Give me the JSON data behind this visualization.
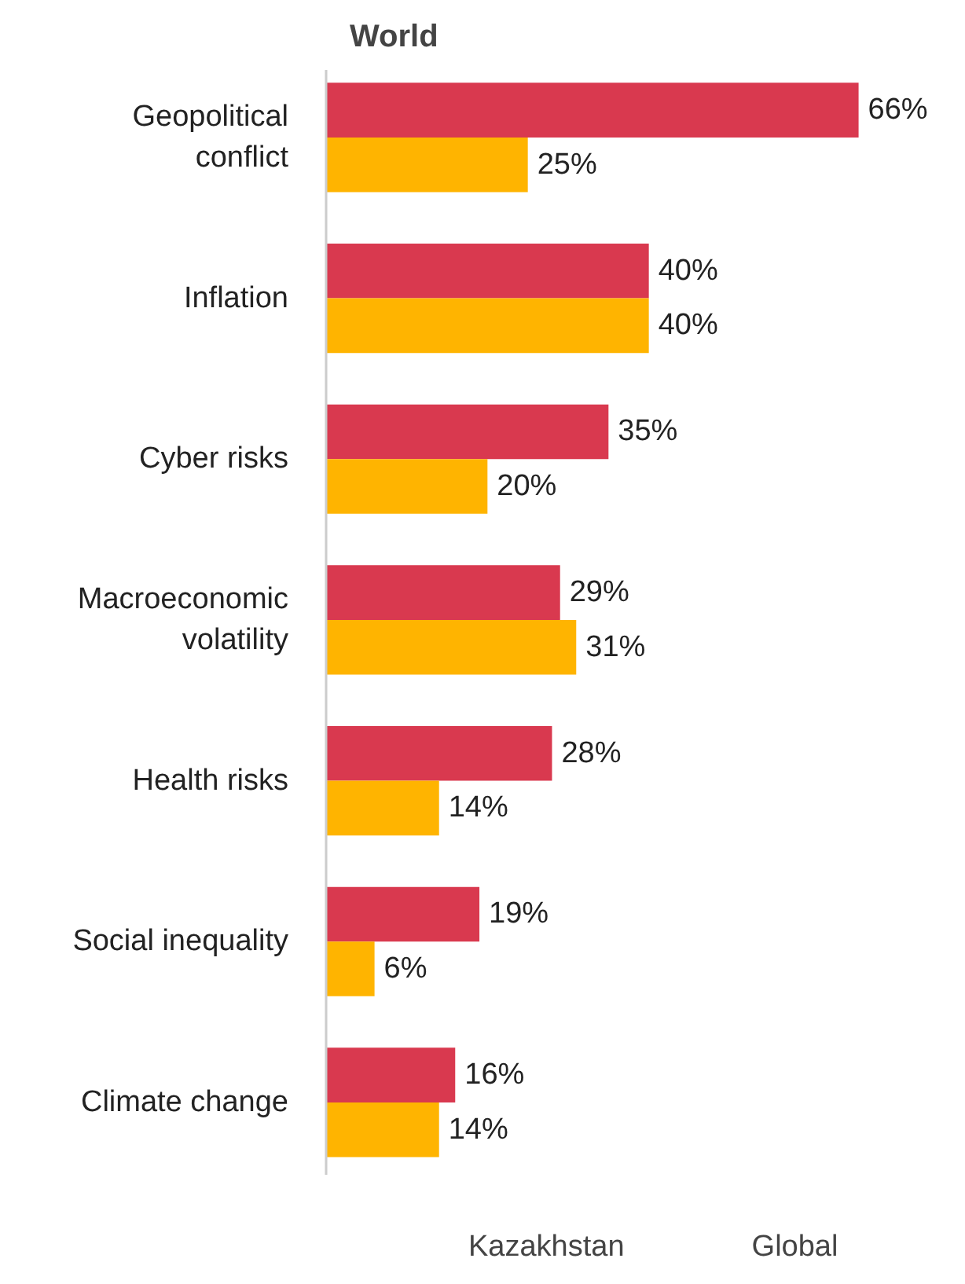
{
  "chart_data": {
    "type": "bar",
    "orientation": "horizontal",
    "title": "World",
    "categories": [
      "Geopolitical conflict",
      "Inflation",
      "Cyber risks",
      "Macroeconomic volatility",
      "Health risks",
      "Social inequality",
      "Climate change"
    ],
    "series": [
      {
        "name": "Kazakhstan",
        "color": "#d9394f",
        "values": [
          66,
          40,
          35,
          29,
          28,
          19,
          16
        ],
        "value_labels": [
          "66%",
          "40%",
          "35%",
          "29%",
          "28%",
          "19%",
          "16%"
        ]
      },
      {
        "name": "Global",
        "color": "#ffb400",
        "values": [
          25,
          40,
          20,
          31,
          14,
          6,
          14
        ],
        "value_labels": [
          "25%",
          "40%",
          "20%",
          "31%",
          "14%",
          "6%",
          "14%"
        ]
      }
    ],
    "legend": "bottom",
    "grid": false
  }
}
